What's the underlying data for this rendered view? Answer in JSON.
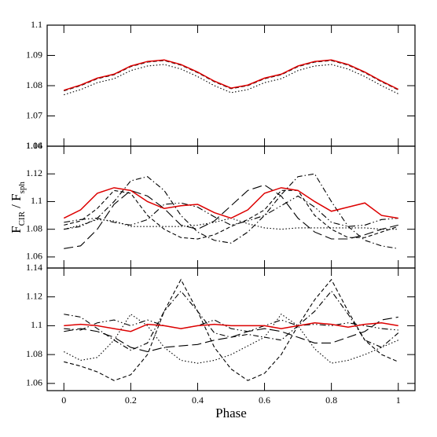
{
  "chart_data": [
    {
      "type": "line",
      "x": [
        0,
        0.05,
        0.1,
        0.15,
        0.2,
        0.25,
        0.3,
        0.35,
        0.4,
        0.45,
        0.5,
        0.55,
        0.6,
        0.65,
        0.7,
        0.75,
        0.8,
        0.85,
        0.9,
        0.95,
        1
      ],
      "xlim": [
        -0.05,
        1.05
      ],
      "xticks": [
        0,
        0.2,
        0.4,
        0.6,
        0.8,
        1
      ],
      "ylim": [
        1.06,
        1.1
      ],
      "yticks": [
        1.06,
        1.07,
        1.08,
        1.09,
        1.1
      ],
      "series": [
        {
          "color": "#000000",
          "dash": "dotted",
          "values": [
            1.077,
            1.0787,
            1.081,
            1.0823,
            1.085,
            1.0865,
            1.087,
            1.0855,
            1.083,
            1.08,
            1.0777,
            1.0787,
            1.081,
            1.0823,
            1.085,
            1.0865,
            1.087,
            1.0855,
            1.083,
            1.08,
            1.0773
          ]
        },
        {
          "color": "#000000",
          "dash": "dashed",
          "values": [
            1.0783,
            1.08,
            1.0823,
            1.0836,
            1.0863,
            1.0878,
            1.0883,
            1.0868,
            1.0843,
            1.0813,
            1.079,
            1.08,
            1.0823,
            1.0836,
            1.0863,
            1.0878,
            1.0883,
            1.0868,
            1.0843,
            1.0813,
            1.0786
          ]
        },
        {
          "color": "#dd0000",
          "dash": "solid",
          "values": [
            1.0785,
            1.0802,
            1.0825,
            1.0838,
            1.0865,
            1.088,
            1.0885,
            1.087,
            1.0845,
            1.0815,
            1.0792,
            1.0802,
            1.0825,
            1.0838,
            1.0865,
            1.088,
            1.0885,
            1.087,
            1.0845,
            1.0815,
            1.0788
          ]
        }
      ]
    },
    {
      "type": "line",
      "x": [
        0,
        0.05,
        0.1,
        0.15,
        0.2,
        0.25,
        0.3,
        0.35,
        0.4,
        0.45,
        0.5,
        0.55,
        0.6,
        0.65,
        0.7,
        0.75,
        0.8,
        0.85,
        0.9,
        0.95,
        1
      ],
      "xlim": [
        -0.05,
        1.05
      ],
      "xticks": [
        0,
        0.2,
        0.4,
        0.6,
        0.8,
        1
      ],
      "ylim": [
        1.052,
        1.14
      ],
      "yticks": [
        1.06,
        1.08,
        1.1,
        1.12,
        1.14
      ],
      "ylabel": [
        "F",
        "CIR",
        " / ",
        "F",
        "sph"
      ],
      "series": [
        {
          "color": "#000000",
          "dash": "longdash",
          "values": [
            1.066,
            1.068,
            1.08,
            1.098,
            1.108,
            1.104,
            1.095,
            1.083,
            1.08,
            1.086,
            1.097,
            1.108,
            1.112,
            1.104,
            1.088,
            1.078,
            1.073,
            1.073,
            1.076,
            1.08,
            1.083
          ]
        },
        {
          "color": "#000000",
          "dash": "dashdot",
          "values": [
            1.08,
            1.082,
            1.088,
            1.1,
            1.115,
            1.118,
            1.108,
            1.09,
            1.078,
            1.072,
            1.07,
            1.078,
            1.09,
            1.105,
            1.118,
            1.12,
            1.1,
            1.082,
            1.072,
            1.068,
            1.066
          ]
        },
        {
          "color": "#000000",
          "dash": "dashed",
          "values": [
            1.083,
            1.086,
            1.095,
            1.108,
            1.106,
            1.09,
            1.08,
            1.074,
            1.073,
            1.076,
            1.082,
            1.087,
            1.094,
            1.108,
            1.108,
            1.09,
            1.08,
            1.074,
            1.074,
            1.078,
            1.082
          ]
        },
        {
          "color": "#000000",
          "dash": "dotted",
          "values": [
            1.08,
            1.083,
            1.087,
            1.086,
            1.082,
            1.082,
            1.082,
            1.082,
            1.083,
            1.085,
            1.088,
            1.084,
            1.081,
            1.08,
            1.081,
            1.081,
            1.081,
            1.081,
            1.081,
            1.08,
            1.08
          ]
        },
        {
          "color": "#000000",
          "dash": "dashdotdot",
          "values": [
            1.085,
            1.087,
            1.088,
            1.085,
            1.083,
            1.087,
            1.098,
            1.099,
            1.096,
            1.089,
            1.083,
            1.086,
            1.09,
            1.097,
            1.104,
            1.096,
            1.085,
            1.082,
            1.083,
            1.087,
            1.088
          ]
        },
        {
          "color": "#dd0000",
          "dash": "solid",
          "values": [
            1.088,
            1.094,
            1.106,
            1.11,
            1.108,
            1.1,
            1.095,
            1.097,
            1.098,
            1.092,
            1.088,
            1.094,
            1.106,
            1.11,
            1.108,
            1.1,
            1.093,
            1.096,
            1.099,
            1.09,
            1.088
          ]
        }
      ]
    },
    {
      "type": "line",
      "x": [
        0,
        0.05,
        0.1,
        0.15,
        0.2,
        0.25,
        0.3,
        0.35,
        0.4,
        0.45,
        0.5,
        0.55,
        0.6,
        0.65,
        0.7,
        0.75,
        0.8,
        0.85,
        0.9,
        0.95,
        1
      ],
      "xlim": [
        -0.05,
        1.05
      ],
      "xticks": [
        0,
        0.2,
        0.4,
        0.6,
        0.8,
        1
      ],
      "xlabel": "Phase",
      "ylim": [
        1.055,
        1.14
      ],
      "yticks": [
        1.06,
        1.08,
        1.1,
        1.12,
        1.14
      ],
      "series": [
        {
          "color": "#000000",
          "dash": "dashed",
          "values": [
            1.075,
            1.072,
            1.068,
            1.062,
            1.066,
            1.08,
            1.11,
            1.132,
            1.11,
            1.085,
            1.07,
            1.062,
            1.067,
            1.08,
            1.1,
            1.118,
            1.132,
            1.11,
            1.09,
            1.08,
            1.075
          ]
        },
        {
          "color": "#000000",
          "dash": "dashdot",
          "values": [
            1.108,
            1.106,
            1.098,
            1.09,
            1.083,
            1.088,
            1.11,
            1.124,
            1.11,
            1.095,
            1.092,
            1.094,
            1.092,
            1.09,
            1.1,
            1.11,
            1.124,
            1.108,
            1.09,
            1.085,
            1.095
          ]
        },
        {
          "color": "#000000",
          "dash": "dotted",
          "values": [
            1.082,
            1.076,
            1.078,
            1.09,
            1.108,
            1.1,
            1.085,
            1.076,
            1.074,
            1.076,
            1.08,
            1.086,
            1.092,
            1.108,
            1.1,
            1.084,
            1.074,
            1.076,
            1.08,
            1.085,
            1.09
          ]
        },
        {
          "color": "#000000",
          "dash": "longdash",
          "values": [
            1.096,
            1.098,
            1.096,
            1.092,
            1.085,
            1.082,
            1.085,
            1.086,
            1.087,
            1.09,
            1.092,
            1.096,
            1.098,
            1.096,
            1.092,
            1.088,
            1.088,
            1.092,
            1.096,
            1.104,
            1.106
          ]
        },
        {
          "color": "#000000",
          "dash": "dashdotdot",
          "values": [
            1.098,
            1.097,
            1.102,
            1.104,
            1.1,
            1.104,
            1.1,
            1.098,
            1.1,
            1.104,
            1.098,
            1.096,
            1.1,
            1.104,
            1.1,
            1.101,
            1.1,
            1.102,
            1.1,
            1.098,
            1.097
          ]
        },
        {
          "color": "#dd0000",
          "dash": "solid",
          "values": [
            1.1,
            1.101,
            1.1,
            1.098,
            1.096,
            1.101,
            1.1,
            1.098,
            1.1,
            1.101,
            1.1,
            1.1,
            1.1,
            1.098,
            1.1,
            1.102,
            1.101,
            1.099,
            1.101,
            1.102,
            1.1
          ]
        }
      ]
    }
  ]
}
